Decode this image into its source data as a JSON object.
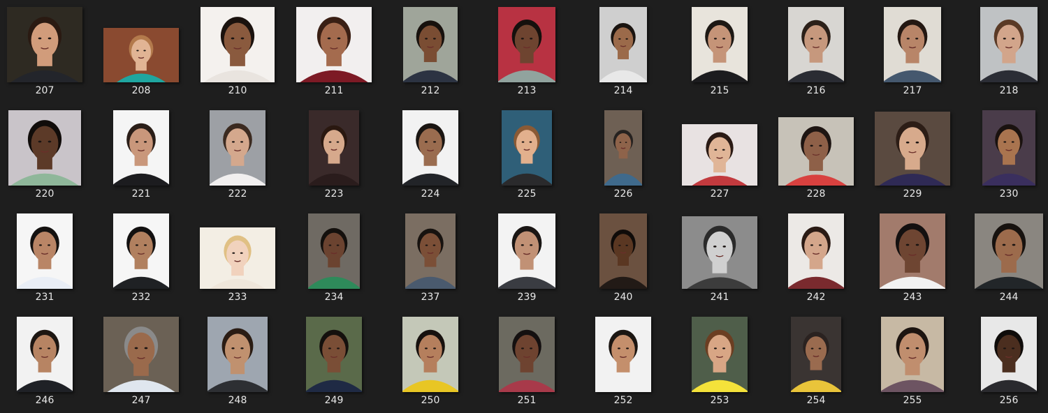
{
  "items": [
    {
      "label": "207",
      "bg": "#2e2a22",
      "skin": "#d19c7b",
      "hair": "#2a1a12",
      "shirt": "#23252b",
      "orient": "square",
      "icon": "face-photo-icon"
    },
    {
      "label": "208",
      "bg": "#8a4a30",
      "skin": "#e1b494",
      "hair": "#b37a4c",
      "shirt": "#1fa6a0",
      "orient": "landscape",
      "icon": "face-photo-icon"
    },
    {
      "label": "210",
      "bg": "#f4f1ee",
      "skin": "#8a5a3e",
      "hair": "#1a120e",
      "shirt": "#e9e4df",
      "orient": "square",
      "icon": "face-photo-icon"
    },
    {
      "label": "211",
      "bg": "#f2efef",
      "skin": "#a46b4e",
      "hair": "#3a1f14",
      "shirt": "#7d1a25",
      "orient": "square",
      "icon": "face-photo-icon"
    },
    {
      "label": "212",
      "bg": "#9fa59a",
      "skin": "#7a4d33",
      "hair": "#17110d",
      "shirt": "#2c3342",
      "orient": "portrait",
      "icon": "face-photo-icon"
    },
    {
      "label": "213",
      "bg": "#b83242",
      "skin": "#6e4430",
      "hair": "#15100d",
      "shirt": "#91a39e",
      "orient": "portrait",
      "icon": "face-photo-icon"
    },
    {
      "label": "214",
      "bg": "#cfcfcf",
      "skin": "#9b6a4a",
      "hair": "#1a1410",
      "shirt": "#e8e8e8",
      "orient": "portrait",
      "icon": "face-photo-icon"
    },
    {
      "label": "215",
      "bg": "#e8e4dc",
      "skin": "#c59478",
      "hair": "#1d1814",
      "shirt": "#1c1c1e",
      "orient": "portrait",
      "icon": "face-photo-icon"
    },
    {
      "label": "216",
      "bg": "#d8d6d2",
      "skin": "#c6987d",
      "hair": "#2b2019",
      "shirt": "#2a2c33",
      "orient": "portrait",
      "icon": "face-photo-icon"
    },
    {
      "label": "217",
      "bg": "#e0dcd4",
      "skin": "#b88568",
      "hair": "#241812",
      "shirt": "#45586e",
      "orient": "portrait",
      "icon": "face-photo-icon"
    },
    {
      "label": "218",
      "bg": "#bfc2c4",
      "skin": "#d2a58b",
      "hair": "#5a3a26",
      "shirt": "#2b2d35",
      "orient": "portrait",
      "icon": "face-photo-icon"
    },
    {
      "label": "220",
      "bg": "#c9c4c9",
      "skin": "#5c3a28",
      "hair": "#100c0a",
      "shirt": "#8fb79a",
      "orient": "square",
      "icon": "face-photo-icon"
    },
    {
      "label": "221",
      "bg": "#f5f5f5",
      "skin": "#c9977b",
      "hair": "#2a1e18",
      "shirt": "#1c1c1f",
      "orient": "portrait",
      "icon": "face-photo-icon"
    },
    {
      "label": "222",
      "bg": "#9da0a5",
      "skin": "#d4a88d",
      "hair": "#3b2a20",
      "shirt": "#f1efef",
      "orient": "portrait",
      "icon": "face-photo-icon"
    },
    {
      "label": "223",
      "bg": "#3a2a2a",
      "skin": "#d6a98c",
      "hair": "#2a1810",
      "shirt": "#2a1c1c",
      "orient": "portrait",
      "icon": "face-photo-icon"
    },
    {
      "label": "224",
      "bg": "#f2f2f2",
      "skin": "#9a6c4f",
      "hair": "#1a1512",
      "shirt": "#222428",
      "orient": "portrait",
      "icon": "face-photo-icon"
    },
    {
      "label": "225",
      "bg": "#2f5f78",
      "skin": "#e2b08d",
      "hair": "#8a5a35",
      "shirt": "#2a2a2c",
      "orient": "portrait",
      "icon": "face-photo-icon"
    },
    {
      "label": "226",
      "bg": "#6e6054",
      "skin": "#8e634a",
      "hair": "#262220",
      "shirt": "#3f6a8c",
      "orient": "portrait",
      "icon": "face-photo-icon"
    },
    {
      "label": "227",
      "bg": "#e8e2e2",
      "skin": "#e0b597",
      "hair": "#2a1a14",
      "shirt": "#c23a3e",
      "orient": "landscape",
      "icon": "face-photo-icon"
    },
    {
      "label": "228",
      "bg": "#c7c2b8",
      "skin": "#8e6048",
      "hair": "#1e1512",
      "shirt": "#d8413f",
      "orient": "landscape",
      "icon": "face-photo-icon"
    },
    {
      "label": "229",
      "bg": "#5a4a40",
      "skin": "#d7aa8c",
      "hair": "#2c1d16",
      "shirt": "#2f2a55",
      "orient": "square",
      "icon": "face-photo-icon"
    },
    {
      "label": "230",
      "bg": "#4a3c4a",
      "skin": "#a9744f",
      "hair": "#1a120f",
      "shirt": "#3a2f5e",
      "orient": "portrait",
      "icon": "face-photo-icon"
    },
    {
      "label": "231",
      "bg": "#f6f6f6",
      "skin": "#b98566",
      "hair": "#141110",
      "shirt": "#e9eef6",
      "orient": "portrait",
      "icon": "face-photo-icon"
    },
    {
      "label": "232",
      "bg": "#f6f6f6",
      "skin": "#b1805f",
      "hair": "#121010",
      "shirt": "#1f2124",
      "orient": "portrait",
      "icon": "face-photo-icon"
    },
    {
      "label": "233",
      "bg": "#f3eee4",
      "skin": "#f1d2bd",
      "hair": "#e0c084",
      "shirt": "#efe6da",
      "orient": "landscape",
      "icon": "face-photo-icon"
    },
    {
      "label": "234",
      "bg": "#6f6a63",
      "skin": "#6b4330",
      "hair": "#14100d",
      "shirt": "#2e8a5a",
      "orient": "portrait",
      "icon": "face-photo-icon"
    },
    {
      "label": "237",
      "bg": "#7b6e62",
      "skin": "#7b4f37",
      "hair": "#17120f",
      "shirt": "#4a5a6e",
      "orient": "portrait",
      "icon": "face-photo-icon"
    },
    {
      "label": "239",
      "bg": "#f3f3f3",
      "skin": "#c19175",
      "hair": "#1a1614",
      "shirt": "#3a3c42",
      "orient": "portrait",
      "icon": "face-photo-icon"
    },
    {
      "label": "240",
      "bg": "#6b5140",
      "skin": "#5a3722",
      "hair": "#0f0b09",
      "shirt": "#221a16",
      "orient": "portrait",
      "icon": "face-photo-icon"
    },
    {
      "label": "241",
      "bg": "#8c8c8c",
      "skin": "#d0d0d0",
      "hair": "#2a2a2a",
      "shirt": "#3c3c3c",
      "orient": "landscape",
      "icon": "face-photo-icon"
    },
    {
      "label": "242",
      "bg": "#ece9e6",
      "skin": "#d4a68b",
      "hair": "#2a1a14",
      "shirt": "#7a2a2e",
      "orient": "portrait",
      "icon": "face-photo-icon"
    },
    {
      "label": "243",
      "bg": "#a27b6c",
      "skin": "#6e4532",
      "hair": "#141010",
      "shirt": "#f2f2f2",
      "orient": "portrait",
      "icon": "face-photo-icon"
    },
    {
      "label": "244",
      "bg": "#8a8680",
      "skin": "#9c6b4c",
      "hair": "#17120f",
      "shirt": "#222629",
      "orient": "portrait",
      "icon": "face-photo-icon"
    },
    {
      "label": "246",
      "bg": "#f2f2f2",
      "skin": "#b78463",
      "hair": "#1c1612",
      "shirt": "#1f2126",
      "orient": "portrait",
      "icon": "face-photo-icon"
    },
    {
      "label": "247",
      "bg": "#6b6155",
      "skin": "#9a6a4c",
      "hair": "#8a8a8a",
      "shirt": "#dfe6ee",
      "orient": "square",
      "icon": "face-photo-icon"
    },
    {
      "label": "248",
      "bg": "#9ea6b0",
      "skin": "#c0916f",
      "hair": "#2a1c14",
      "shirt": "#2d2f33",
      "orient": "portrait",
      "icon": "face-photo-icon"
    },
    {
      "label": "249",
      "bg": "#5a6a4a",
      "skin": "#7a4e36",
      "hair": "#14100d",
      "shirt": "#1f2a44",
      "orient": "portrait",
      "icon": "face-photo-icon"
    },
    {
      "label": "250",
      "bg": "#c4c8b8",
      "skin": "#b57f5d",
      "hair": "#17110e",
      "shirt": "#e8c624",
      "orient": "portrait",
      "icon": "face-photo-icon"
    },
    {
      "label": "251",
      "bg": "#6c6a60",
      "skin": "#6e4330",
      "hair": "#141010",
      "shirt": "#a83a4a",
      "orient": "portrait",
      "icon": "face-photo-icon"
    },
    {
      "label": "252",
      "bg": "#f2f2f2",
      "skin": "#c48f6c",
      "hair": "#1b1612",
      "shirt": "#f2f2f2",
      "orient": "portrait",
      "icon": "face-photo-icon"
    },
    {
      "label": "253",
      "bg": "#4f5e4a",
      "skin": "#d8a685",
      "hair": "#6b3e22",
      "shirt": "#f4e23a",
      "orient": "portrait",
      "icon": "face-photo-icon"
    },
    {
      "label": "254",
      "bg": "#3a3432",
      "skin": "#9a6b4f",
      "hair": "#2a2220",
      "shirt": "#e9c43a",
      "orient": "portrait",
      "icon": "face-photo-icon"
    },
    {
      "label": "255",
      "bg": "#c7b9a4",
      "skin": "#c08e6e",
      "hair": "#1c1410",
      "shirt": "#6d5462",
      "orient": "portrait",
      "icon": "face-photo-icon"
    },
    {
      "label": "256",
      "bg": "#e8e8e8",
      "skin": "#4b2e1f",
      "hair": "#0f0c0a",
      "shirt": "#2a2a2e",
      "orient": "portrait",
      "icon": "face-photo-icon"
    }
  ]
}
